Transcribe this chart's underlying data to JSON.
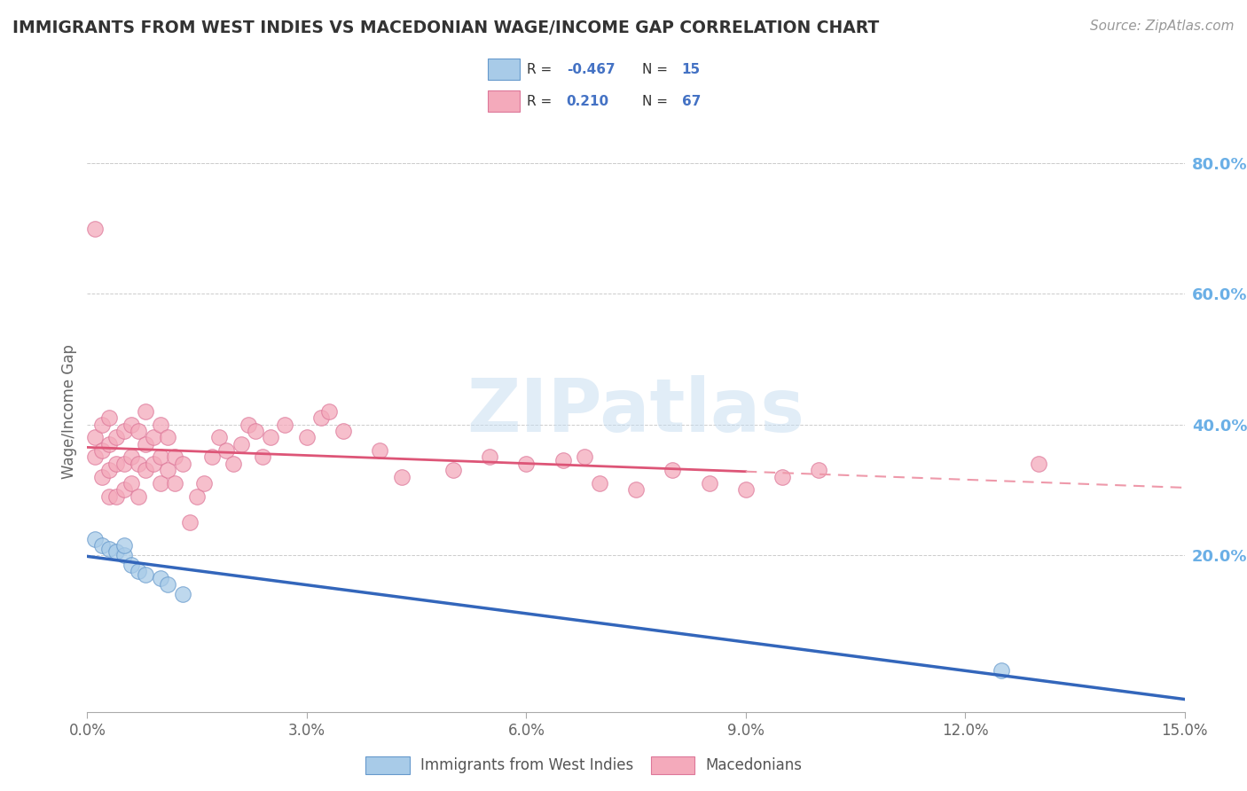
{
  "title": "IMMIGRANTS FROM WEST INDIES VS MACEDONIAN WAGE/INCOME GAP CORRELATION CHART",
  "source": "Source: ZipAtlas.com",
  "ylabel": "Wage/Income Gap",
  "watermark": "ZIPatlas",
  "xlim": [
    0.0,
    0.15
  ],
  "ylim": [
    -0.04,
    0.88
  ],
  "xticks": [
    0.0,
    0.03,
    0.06,
    0.09,
    0.12,
    0.15
  ],
  "xtick_labels": [
    "0.0%",
    "3.0%",
    "6.0%",
    "9.0%",
    "12.0%",
    "15.0%"
  ],
  "yticks_right": [
    0.2,
    0.4,
    0.6,
    0.8
  ],
  "ytick_labels_right": [
    "20.0%",
    "40.0%",
    "60.0%",
    "80.0%"
  ],
  "blue_color": "#A8CBE8",
  "blue_edge": "#6699CC",
  "pink_color": "#F4AABB",
  "pink_edge": "#DD7799",
  "blue_line_color": "#3366BB",
  "pink_line_color": "#DD5577",
  "pink_dash_color": "#EE99AA",
  "legend_blue_label": "Immigrants from West Indies",
  "legend_pink_label": "Macedonians",
  "grid_color": "#CCCCCC",
  "background_color": "#FFFFFF",
  "title_color": "#333333",
  "right_axis_color": "#6AAFE6",
  "blue_x": [
    0.001,
    0.002,
    0.003,
    0.004,
    0.005,
    0.005,
    0.006,
    0.007,
    0.008,
    0.01,
    0.011,
    0.013,
    0.125
  ],
  "blue_y": [
    0.225,
    0.215,
    0.21,
    0.205,
    0.2,
    0.215,
    0.185,
    0.175,
    0.17,
    0.165,
    0.155,
    0.14,
    0.023
  ],
  "pink_x": [
    0.001,
    0.001,
    0.001,
    0.002,
    0.002,
    0.002,
    0.003,
    0.003,
    0.003,
    0.003,
    0.004,
    0.004,
    0.004,
    0.005,
    0.005,
    0.005,
    0.006,
    0.006,
    0.006,
    0.007,
    0.007,
    0.007,
    0.008,
    0.008,
    0.008,
    0.009,
    0.009,
    0.01,
    0.01,
    0.01,
    0.011,
    0.011,
    0.012,
    0.012,
    0.013,
    0.014,
    0.015,
    0.016,
    0.017,
    0.018,
    0.019,
    0.02,
    0.021,
    0.022,
    0.023,
    0.024,
    0.025,
    0.027,
    0.03,
    0.032,
    0.033,
    0.035,
    0.04,
    0.043,
    0.05,
    0.055,
    0.06,
    0.065,
    0.068,
    0.07,
    0.075,
    0.08,
    0.085,
    0.09,
    0.095,
    0.1,
    0.13
  ],
  "pink_y": [
    0.35,
    0.38,
    0.7,
    0.32,
    0.36,
    0.4,
    0.29,
    0.33,
    0.37,
    0.41,
    0.29,
    0.34,
    0.38,
    0.3,
    0.34,
    0.39,
    0.31,
    0.35,
    0.4,
    0.29,
    0.34,
    0.39,
    0.33,
    0.37,
    0.42,
    0.34,
    0.38,
    0.31,
    0.35,
    0.4,
    0.33,
    0.38,
    0.31,
    0.35,
    0.34,
    0.25,
    0.29,
    0.31,
    0.35,
    0.38,
    0.36,
    0.34,
    0.37,
    0.4,
    0.39,
    0.35,
    0.38,
    0.4,
    0.38,
    0.41,
    0.42,
    0.39,
    0.36,
    0.32,
    0.33,
    0.35,
    0.34,
    0.345,
    0.35,
    0.31,
    0.3,
    0.33,
    0.31,
    0.3,
    0.32,
    0.33,
    0.34
  ]
}
